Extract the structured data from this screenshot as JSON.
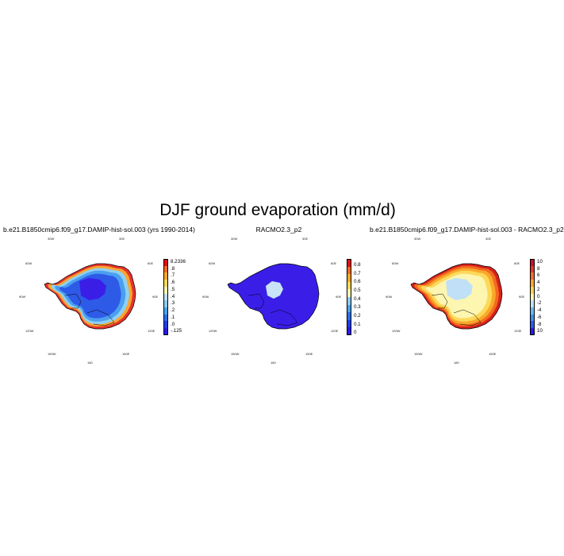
{
  "figure_title": "DJF ground evaporation (mm/d)",
  "lon_labels": {
    "top_left": "30W",
    "top_right": "30E",
    "upper_left": "60W",
    "upper_right": "60E",
    "mid_left": "90W",
    "mid_right": "90E",
    "lower_left": "120W",
    "lower_right": "120E",
    "bottom_left": "150W",
    "bottom_right": "150E",
    "bottom": "180"
  },
  "panels": [
    {
      "title": "b.e21.B1850cmip6.f09_g17.DAMIP-hist-sol.003 (yrs 1990-2014)",
      "colorbar_labels": [
        "8.2336",
        ".8",
        ".7",
        ".6",
        ".5",
        ".4",
        ".3",
        ".2",
        ".1",
        ".0",
        "-.125"
      ],
      "colorbar_colors": [
        "#e01010",
        "#f26a1f",
        "#f9a82a",
        "#fdd85a",
        "#fdf6b0",
        "#bfe0f6",
        "#8ccaf0",
        "#4aa3ea",
        "#2a70e6",
        "#1d3ee8",
        "#2a1aea"
      ],
      "map_colors": {
        "coast": "#e8322a",
        "band1": "#f7a531",
        "band2": "#8fd0f2",
        "band3": "#4b9ff0",
        "interior": "#2e5ae8",
        "core": "#3a1ee8"
      }
    },
    {
      "title": "RACMO2.3_p2",
      "colorbar_labels": [
        "0.8",
        "0.7",
        "0.6",
        "0.5",
        "0.4",
        "0.3",
        "0.2",
        "0.1",
        "0"
      ],
      "colorbar_colors": [
        "#e01010",
        "#f26a1f",
        "#f9a82a",
        "#fdd85a",
        "#fdf6b0",
        "#8ccaf0",
        "#4aa3ea",
        "#2a70e6",
        "#1d3ee8",
        "#2a1aea"
      ],
      "map_colors": {
        "coast": "#3a1ee8",
        "band1": "#3a1ee8",
        "band2": "#3a1ee8",
        "band3": "#3a1ee8",
        "interior": "#3a1ee8",
        "core": "#c8e4f6"
      }
    },
    {
      "title": "b.e21.B1850cmip6.f09_g17.DAMIP-hist-sol.003 - RACMO2.3_p2",
      "colorbar_labels": [
        "10",
        "8",
        "6",
        "4",
        "2",
        "0",
        "-2",
        "-4",
        "-6",
        "-8",
        "10"
      ],
      "colorbar_colors": [
        "#c8102a",
        "#e8352a",
        "#f56c2a",
        "#f9a52e",
        "#fdd35c",
        "#fdf6b0",
        "#bfe0f6",
        "#6cb8f2",
        "#3f8fec",
        "#2a5ce8",
        "#2a1aea"
      ],
      "map_colors": {
        "coast": "#d8201c",
        "band1": "#f26a1f",
        "band2": "#f9a82a",
        "band3": "#fdd85a",
        "interior": "#fdf6b0",
        "core": "#bfe0f6"
      }
    }
  ]
}
